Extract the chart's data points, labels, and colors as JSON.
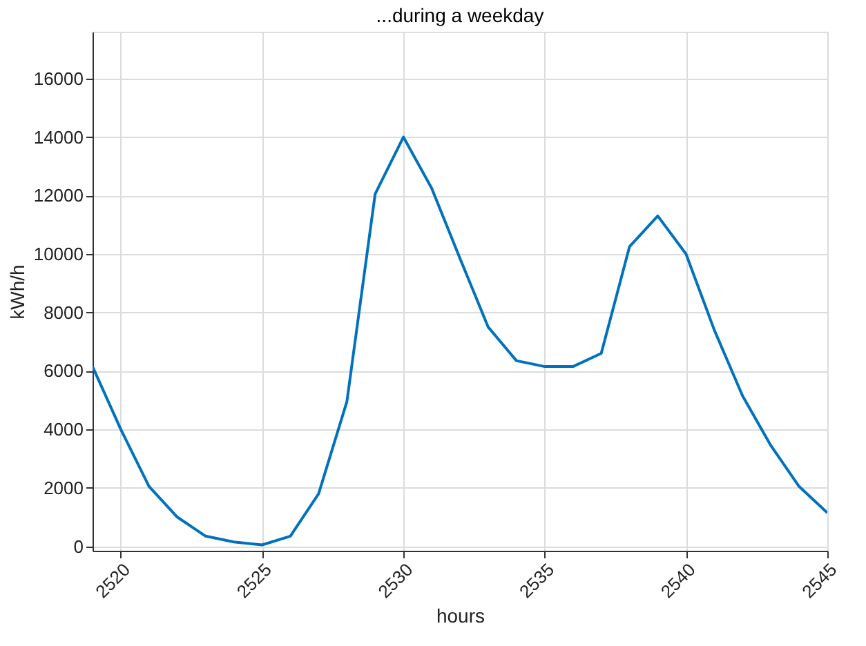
{
  "chart_data": {
    "type": "line",
    "title": "...during a weekday",
    "xlabel": "hours",
    "ylabel": "kWh/h",
    "x": [
      2519,
      2520,
      2521,
      2522,
      2523,
      2524,
      2525,
      2526,
      2527,
      2528,
      2529,
      2530,
      2531,
      2532,
      2533,
      2534,
      2535,
      2536,
      2537,
      2538,
      2539,
      2540,
      2541,
      2542,
      2543,
      2544,
      2545
    ],
    "series": [
      {
        "color": "#0072bd",
        "values": [
          6150,
          4000,
          2050,
          1000,
          350,
          150,
          50,
          350,
          1800,
          4950,
          12050,
          14000,
          12250,
          9850,
          7500,
          6350,
          6150,
          6150,
          6600,
          10250,
          11300,
          10000,
          7400,
          5150,
          3450,
          2050,
          1150
        ]
      }
    ],
    "xlim": [
      2519,
      2545
    ],
    "xticks": [
      2520,
      2525,
      2530,
      2535,
      2540,
      2545
    ],
    "ylim": [
      -150,
      17600
    ],
    "yticks": [
      0,
      2000,
      4000,
      6000,
      8000,
      10000,
      12000,
      14000,
      16000
    ],
    "grid": true,
    "line_style": "solid"
  }
}
